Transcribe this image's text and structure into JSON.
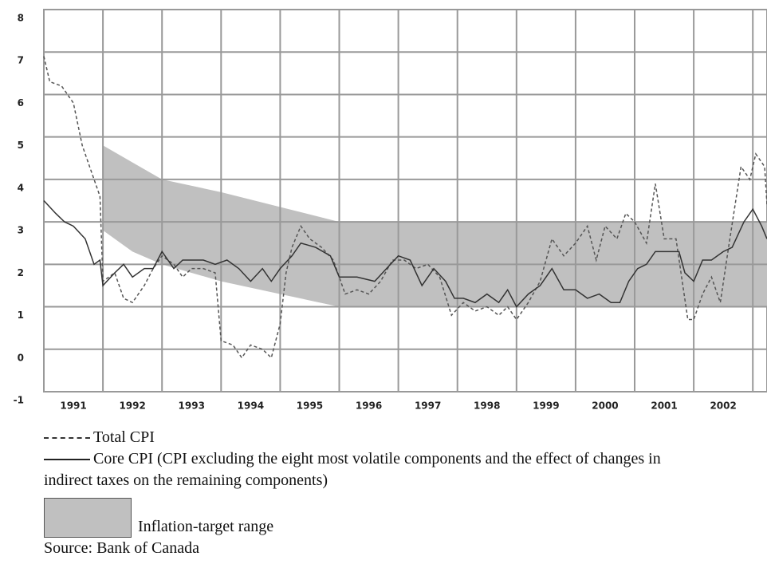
{
  "chart_data": {
    "type": "line",
    "categories": [
      "1991",
      "1992",
      "1993",
      "1994",
      "1995",
      "1996",
      "1997",
      "1998",
      "1999",
      "2000",
      "2001",
      "2002"
    ],
    "xlim": [
      1991,
      2003.24
    ],
    "ylim": [
      -1,
      8
    ],
    "yticks": [
      -1,
      0,
      1,
      2,
      3,
      4,
      5,
      6,
      7,
      8
    ],
    "grid": true,
    "band": {
      "name": "Inflation-target range",
      "color": "#c0c0c0",
      "x": [
        1992.0,
        1992.5,
        1993.0,
        1994.0,
        1995.0,
        1996.0,
        2003.24
      ],
      "lower": [
        2.8,
        2.3,
        2.0,
        1.6,
        1.3,
        1.0,
        1.0
      ],
      "upper": [
        4.8,
        4.4,
        4.0,
        3.7,
        3.35,
        3.0,
        3.0
      ]
    },
    "series": [
      {
        "name": "Total CPI",
        "color": "#555555",
        "dash": true,
        "x": [
          1991.0,
          1991.1,
          1991.3,
          1991.5,
          1991.65,
          1991.8,
          1991.95,
          1992.0,
          1992.2,
          1992.35,
          1992.5,
          1992.7,
          1992.85,
          1993.0,
          1993.2,
          1993.35,
          1993.5,
          1993.7,
          1993.9,
          1994.0,
          1994.2,
          1994.35,
          1994.5,
          1994.7,
          1994.85,
          1995.0,
          1995.1,
          1995.2,
          1995.35,
          1995.5,
          1995.7,
          1995.9,
          1996.1,
          1996.3,
          1996.5,
          1996.7,
          1996.9,
          1997.1,
          1997.3,
          1997.5,
          1997.7,
          1997.9,
          1998.1,
          1998.3,
          1998.5,
          1998.7,
          1998.85,
          1999.0,
          1999.2,
          1999.4,
          1999.6,
          1999.8,
          2000.0,
          2000.2,
          2000.35,
          2000.5,
          2000.7,
          2000.85,
          2001.0,
          2001.2,
          2001.35,
          2001.5,
          2001.7,
          2001.9,
          2002.0,
          2002.15,
          2002.3,
          2002.45,
          2002.6,
          2002.8,
          2002.95,
          2003.05,
          2003.2,
          2003.24
        ],
        "values": [
          6.9,
          6.3,
          6.2,
          5.8,
          4.8,
          4.2,
          3.6,
          1.6,
          1.8,
          1.2,
          1.1,
          1.5,
          1.9,
          2.2,
          2.0,
          1.7,
          1.9,
          1.9,
          1.8,
          0.2,
          0.1,
          -0.2,
          0.1,
          0.0,
          -0.2,
          0.6,
          1.8,
          2.4,
          2.9,
          2.6,
          2.4,
          2.1,
          1.3,
          1.4,
          1.3,
          1.6,
          2.1,
          2.1,
          1.9,
          2.0,
          1.7,
          0.8,
          1.1,
          0.9,
          1.0,
          0.8,
          1.0,
          0.7,
          1.1,
          1.6,
          2.6,
          2.2,
          2.5,
          2.9,
          2.1,
          2.9,
          2.6,
          3.2,
          3.0,
          2.5,
          3.9,
          2.6,
          2.6,
          0.7,
          0.7,
          1.3,
          1.7,
          1.1,
          2.5,
          4.3,
          4.0,
          4.6,
          4.3,
          3.4
        ]
      },
      {
        "name": "Core CPI (CPI excluding the eight most volatile components and the effect of changes in indirect taxes on the remaining components)",
        "color": "#333333",
        "dash": false,
        "x": [
          1991.0,
          1991.2,
          1991.35,
          1991.5,
          1991.7,
          1991.85,
          1991.95,
          1992.0,
          1992.2,
          1992.35,
          1992.5,
          1992.7,
          1992.85,
          1993.0,
          1993.2,
          1993.35,
          1993.5,
          1993.7,
          1993.9,
          1994.1,
          1994.3,
          1994.5,
          1994.7,
          1994.85,
          1995.0,
          1995.2,
          1995.35,
          1995.6,
          1995.85,
          1996.0,
          1996.3,
          1996.6,
          1996.8,
          1997.0,
          1997.2,
          1997.4,
          1997.6,
          1997.8,
          1997.95,
          1998.1,
          1998.3,
          1998.5,
          1998.7,
          1998.85,
          1999.0,
          1999.2,
          1999.4,
          1999.6,
          1999.8,
          2000.0,
          2000.2,
          2000.4,
          2000.6,
          2000.75,
          2000.9,
          2001.05,
          2001.2,
          2001.35,
          2001.55,
          2001.75,
          2001.85,
          2002.0,
          2002.15,
          2002.3,
          2002.5,
          2002.65,
          2002.85,
          2003.0,
          2003.15,
          2003.24
        ],
        "values": [
          3.5,
          3.2,
          3.0,
          2.9,
          2.6,
          2.0,
          2.1,
          1.5,
          1.8,
          2.0,
          1.7,
          1.9,
          1.9,
          2.3,
          1.9,
          2.1,
          2.1,
          2.1,
          2.0,
          2.1,
          1.9,
          1.6,
          1.9,
          1.6,
          1.9,
          2.2,
          2.5,
          2.4,
          2.2,
          1.7,
          1.7,
          1.6,
          1.9,
          2.2,
          2.1,
          1.5,
          1.9,
          1.6,
          1.2,
          1.2,
          1.1,
          1.3,
          1.1,
          1.4,
          1.0,
          1.3,
          1.5,
          1.9,
          1.4,
          1.4,
          1.2,
          1.3,
          1.1,
          1.1,
          1.6,
          1.9,
          2.0,
          2.3,
          2.3,
          2.3,
          1.8,
          1.6,
          2.1,
          2.1,
          2.3,
          2.4,
          3.0,
          3.3,
          2.9,
          2.6
        ]
      }
    ],
    "source": "Source: Bank of Canada"
  }
}
